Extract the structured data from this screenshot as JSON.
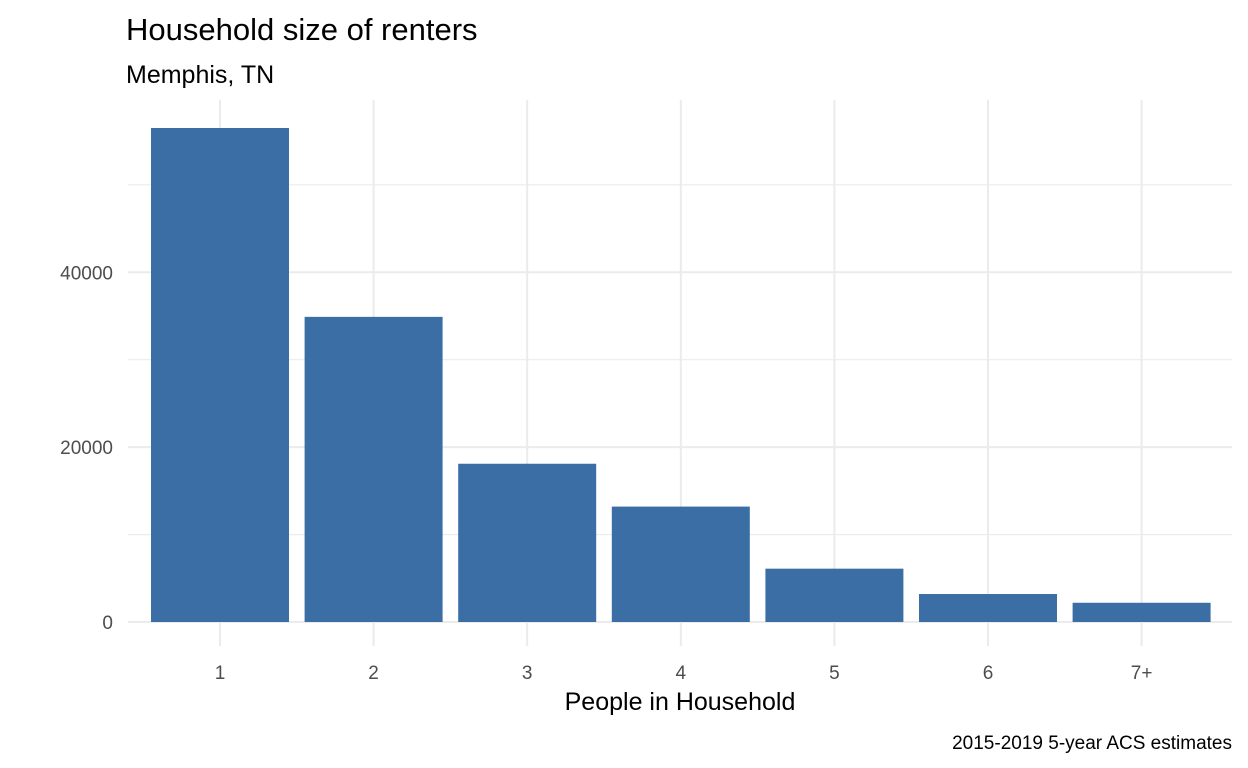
{
  "chart_data": {
    "type": "bar",
    "title": "Household size of renters",
    "subtitle": "Memphis, TN",
    "xlabel": "People in Household",
    "ylabel": "",
    "caption": "2015-2019 5-year ACS estimates",
    "categories": [
      "1",
      "2",
      "3",
      "4",
      "5",
      "6",
      "7+"
    ],
    "values": [
      56500,
      34900,
      18100,
      13200,
      6100,
      3200,
      2200
    ],
    "ylim": [
      0,
      57500
    ],
    "yticks": [
      0,
      20000,
      40000
    ],
    "yticks_minor": [
      10000,
      30000,
      50000
    ],
    "ytick_labels": [
      "0",
      "20000",
      "40000"
    ],
    "grid": true,
    "legend": "none",
    "bar_color": "#3a6ea5"
  }
}
